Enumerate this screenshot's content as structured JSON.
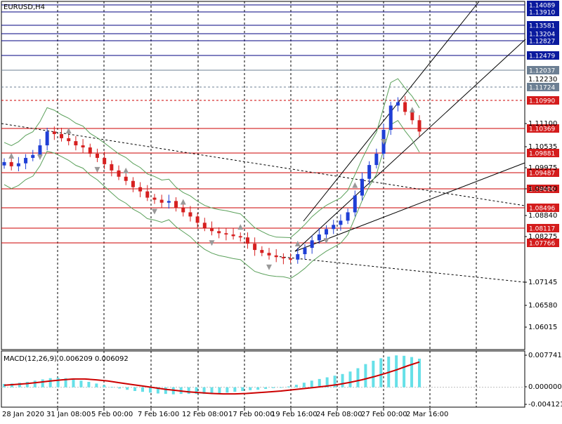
{
  "chart_window": {
    "symbol_label": "EURUSD,H4",
    "macd_label": "MACD(12,26,9) 0.006209 0.006092"
  },
  "colors": {
    "bull_candle": "#1f3fd6",
    "bear_candle": "#d62020",
    "support_line": "#cc0000",
    "resistance_line": "#000080",
    "bollinger": "#5aa05a",
    "histogram": "#66e0e8",
    "signal": "#cc0000",
    "fractal": "#999999"
  },
  "chart_data": [
    {
      "type": "candlestick",
      "name": "price",
      "price_axis_labels": [
        "1.11100",
        "1.10535",
        "1.09975",
        "1.09410",
        "1.08840",
        "1.08275",
        "1.07145",
        "1.06580",
        "1.06015"
      ],
      "price_boxes": [
        {
          "value": "1.14089",
          "style": "resistance"
        },
        {
          "value": "1.13910",
          "style": "resistance"
        },
        {
          "value": "1.13581",
          "style": "resistance"
        },
        {
          "value": "1.13380",
          "style": "plain"
        },
        {
          "value": "1.13204",
          "style": "resistance"
        },
        {
          "value": "1.12827",
          "style": "resistance"
        },
        {
          "value": "1.12479",
          "style": "resistance"
        },
        {
          "value": "1.12230",
          "style": "plain"
        },
        {
          "value": "1.12037",
          "style": "grey"
        },
        {
          "value": "1.11724",
          "style": "grey"
        },
        {
          "value": "1.10990",
          "style": "support"
        },
        {
          "value": "1.10369",
          "style": "support"
        },
        {
          "value": "1.09881",
          "style": "support"
        },
        {
          "value": "1.09487",
          "style": "support"
        },
        {
          "value": "1.09000",
          "style": "support"
        },
        {
          "value": "1.08496",
          "style": "support"
        },
        {
          "value": "1.08117",
          "style": "support"
        },
        {
          "value": "1.07766",
          "style": "support"
        }
      ],
      "time_labels": [
        "28 Jan 2020",
        "31 Jan 08:00",
        "5 Feb 00:00",
        "7 Feb 16:00",
        "12 Feb 08:00",
        "17 Feb 00:00",
        "19 Feb 16:00",
        "24 Feb 08:00",
        "27 Feb 00:00",
        "2 Mar 16:00"
      ],
      "close_path": [
        1.1025,
        1.1015,
        1.1022,
        1.1035,
        1.1042,
        1.1065,
        1.1098,
        1.1092,
        1.1082,
        1.1075,
        1.1065,
        1.106,
        1.1045,
        1.1035,
        1.102,
        1.1005,
        1.099,
        1.098,
        1.0965,
        1.0955,
        1.094,
        1.0935,
        1.0928,
        1.0932,
        1.0915,
        1.0905,
        1.0895,
        1.088,
        1.0868,
        1.086,
        1.0855,
        1.0852,
        1.0848,
        1.0845,
        1.083,
        1.0815,
        1.0808,
        1.0802,
        1.0798,
        1.0795,
        1.0792,
        1.0805,
        1.082,
        1.0838,
        1.0852,
        1.0865,
        1.0875,
        1.0885,
        1.0905,
        1.0945,
        1.0985,
        1.1018,
        1.1045,
        1.1102,
        1.116,
        1.1168,
        1.1145,
        1.1125,
        1.1098
      ]
    },
    {
      "type": "histogram",
      "name": "MACD(12,26,9)",
      "axis_labels": [
        "0.007741",
        "0.000000",
        "-0.004121"
      ],
      "macd_value": 0.006209,
      "signal_value": 0.006092,
      "histogram_path": [
        0.0008,
        0.0009,
        0.0011,
        0.0013,
        0.0016,
        0.0019,
        0.0022,
        0.0023,
        0.0022,
        0.0019,
        0.0016,
        0.0013,
        0.0009,
        0.0005,
        0.0001,
        -0.0003,
        -0.0006,
        -0.0009,
        -0.0011,
        -0.0013,
        -0.0015,
        -0.0016,
        -0.0017,
        -0.0016,
        -0.0016,
        -0.0016,
        -0.0016,
        -0.0015,
        -0.0014,
        -0.0013,
        -0.0011,
        -0.0009,
        -0.0007,
        -0.0006,
        -0.0004,
        -0.0002,
        0.0,
        0.0002,
        0.0006,
        0.0011,
        0.0016,
        0.002,
        0.0024,
        0.0028,
        0.0032,
        0.0038,
        0.0046,
        0.0056,
        0.0064,
        0.007,
        0.0074,
        0.0077,
        0.0076,
        0.0073,
        0.0069
      ],
      "signal_path": [
        0.0005,
        0.0007,
        0.0009,
        0.0012,
        0.0015,
        0.0018,
        0.002,
        0.002,
        0.0018,
        0.0015,
        0.0011,
        0.0007,
        0.0003,
        -0.0001,
        -0.0005,
        -0.0008,
        -0.0011,
        -0.0013,
        -0.0015,
        -0.0016,
        -0.0016,
        -0.0015,
        -0.0013,
        -0.0011,
        -0.0009,
        -0.0006,
        -0.0003,
        0.0,
        0.0003,
        0.0007,
        0.0012,
        0.0018,
        0.0025,
        0.0033,
        0.0042,
        0.0052,
        0.0061
      ]
    }
  ]
}
